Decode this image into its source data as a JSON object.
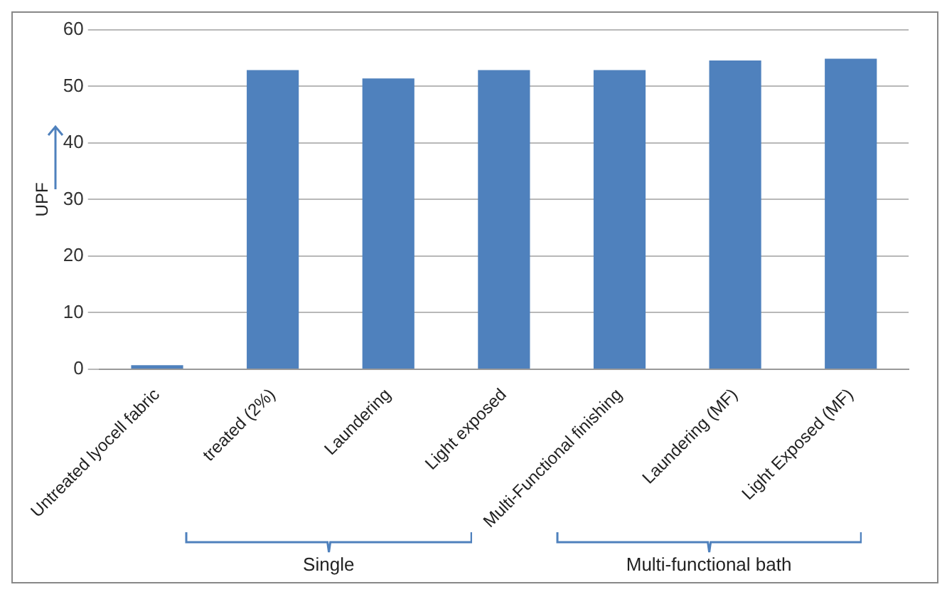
{
  "chart_data": {
    "type": "bar",
    "ylabel": "UPF",
    "categories": [
      "Untreated lyocell fabric",
      "treated (2%)",
      "Laundering",
      "Light exposed",
      "Multi-Functional finishing",
      "Laundering (MF)",
      "Light Exposed (MF)"
    ],
    "values": [
      0.7,
      52.9,
      51.4,
      52.9,
      52.9,
      54.6,
      54.9
    ],
    "color": "#4f81bd",
    "ylim": [
      0,
      60
    ],
    "yticks": [
      0,
      10,
      20,
      30,
      40,
      50,
      60
    ],
    "grid": "y",
    "legend": false,
    "annotations": [
      "Single",
      "Multi-functional bath"
    ]
  }
}
